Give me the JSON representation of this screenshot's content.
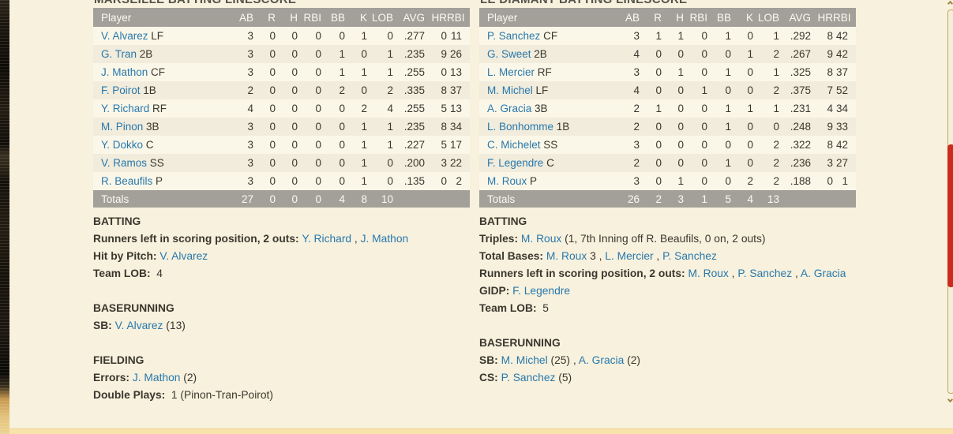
{
  "colors": {
    "page_bg": "#f7f1dd",
    "header_bg": "#a2a099",
    "header_text": "#fbfaf2",
    "row_odd": "#fbf7e8",
    "row_even": "#f1ecdb",
    "link": "#2878ad",
    "text_dark": "#3b372f",
    "title": "#56524a",
    "scroll_thumb": "#cb2b1b",
    "scroll_border": "#c2a86a",
    "bottom_bar": "#f8e3ab"
  },
  "tables": [
    {
      "title": "MARSEILLE BATTING LINESCORE",
      "columns": [
        "Player",
        "AB",
        "R",
        "H",
        "RBI",
        "BB",
        "K",
        "LOB",
        "AVG",
        "HR",
        "RBI"
      ],
      "rows": [
        {
          "name": "V. Alvarez",
          "pos": "LF",
          "stats": [
            "3",
            "0",
            "0",
            "0",
            "0",
            "1",
            "0",
            ".277",
            "0",
            "11"
          ]
        },
        {
          "name": "G. Tran",
          "pos": "2B",
          "stats": [
            "3",
            "0",
            "0",
            "0",
            "1",
            "0",
            "1",
            ".235",
            "9",
            "26"
          ]
        },
        {
          "name": "J. Mathon",
          "pos": "CF",
          "stats": [
            "3",
            "0",
            "0",
            "0",
            "1",
            "1",
            "1",
            ".255",
            "0",
            "13"
          ]
        },
        {
          "name": "F. Poirot",
          "pos": "1B",
          "stats": [
            "2",
            "0",
            "0",
            "0",
            "2",
            "0",
            "2",
            ".335",
            "8",
            "37"
          ]
        },
        {
          "name": "Y. Richard",
          "pos": "RF",
          "stats": [
            "4",
            "0",
            "0",
            "0",
            "0",
            "2",
            "4",
            ".255",
            "5",
            "13"
          ]
        },
        {
          "name": "M. Pinon",
          "pos": "3B",
          "stats": [
            "3",
            "0",
            "0",
            "0",
            "0",
            "1",
            "1",
            ".235",
            "8",
            "34"
          ]
        },
        {
          "name": "Y. Dokko",
          "pos": "C",
          "stats": [
            "3",
            "0",
            "0",
            "0",
            "0",
            "1",
            "1",
            ".227",
            "5",
            "17"
          ]
        },
        {
          "name": "V. Ramos",
          "pos": "SS",
          "stats": [
            "3",
            "0",
            "0",
            "0",
            "0",
            "1",
            "0",
            ".200",
            "3",
            "22"
          ]
        },
        {
          "name": "R. Beaufils",
          "pos": "P",
          "stats": [
            "3",
            "0",
            "0",
            "0",
            "0",
            "1",
            "0",
            ".135",
            "0",
            "2"
          ]
        }
      ],
      "totals": {
        "label": "Totals",
        "stats": [
          "27",
          "0",
          "0",
          "0",
          "4",
          "8",
          "10",
          "",
          "",
          ""
        ]
      }
    },
    {
      "title": "LE DIAMANT BATTING LINESCORE",
      "columns": [
        "Player",
        "AB",
        "R",
        "H",
        "RBI",
        "BB",
        "K",
        "LOB",
        "AVG",
        "HR",
        "RBI"
      ],
      "rows": [
        {
          "name": "P. Sanchez",
          "pos": "CF",
          "stats": [
            "3",
            "1",
            "1",
            "0",
            "1",
            "0",
            "1",
            ".292",
            "8",
            "42"
          ]
        },
        {
          "name": "G. Sweet",
          "pos": "2B",
          "stats": [
            "4",
            "0",
            "0",
            "0",
            "0",
            "1",
            "2",
            ".267",
            "9",
            "42"
          ]
        },
        {
          "name": "L. Mercier",
          "pos": "RF",
          "stats": [
            "3",
            "0",
            "1",
            "0",
            "1",
            "0",
            "1",
            ".325",
            "8",
            "37"
          ]
        },
        {
          "name": "M. Michel",
          "pos": "LF",
          "stats": [
            "4",
            "0",
            "0",
            "1",
            "0",
            "0",
            "2",
            ".375",
            "7",
            "52"
          ]
        },
        {
          "name": "A. Gracia",
          "pos": "3B",
          "stats": [
            "2",
            "1",
            "0",
            "0",
            "1",
            "1",
            "1",
            ".231",
            "4",
            "34"
          ]
        },
        {
          "name": "L. Bonhomme",
          "pos": "1B",
          "stats": [
            "2",
            "0",
            "0",
            "0",
            "1",
            "0",
            "0",
            ".248",
            "9",
            "33"
          ]
        },
        {
          "name": "C. Michelet",
          "pos": "SS",
          "stats": [
            "3",
            "0",
            "0",
            "0",
            "0",
            "0",
            "2",
            ".322",
            "8",
            "42"
          ]
        },
        {
          "name": "F. Legendre",
          "pos": "C",
          "stats": [
            "2",
            "0",
            "0",
            "0",
            "1",
            "0",
            "2",
            ".236",
            "3",
            "27"
          ]
        },
        {
          "name": "M. Roux",
          "pos": "P",
          "stats": [
            "3",
            "0",
            "1",
            "0",
            "0",
            "2",
            "2",
            ".188",
            "0",
            "1"
          ]
        }
      ],
      "totals": {
        "label": "Totals",
        "stats": [
          "26",
          "2",
          "3",
          "1",
          "5",
          "4",
          "13",
          "",
          "",
          ""
        ]
      }
    }
  ],
  "notes": [
    {
      "sections": [
        {
          "heading": "BATTING",
          "lines": [
            [
              {
                "k": "label",
                "t": "Runners left in scoring position, 2 outs: "
              },
              {
                "k": "link",
                "t": "Y. Richard"
              },
              {
                "k": "text",
                "t": " , "
              },
              {
                "k": "link",
                "t": "J. Mathon"
              }
            ],
            [
              {
                "k": "label",
                "t": "Hit by Pitch: "
              },
              {
                "k": "link",
                "t": "V. Alvarez"
              }
            ],
            [
              {
                "k": "label",
                "t": "Team LOB: "
              },
              {
                "k": "text",
                "t": " 4"
              }
            ]
          ]
        },
        {
          "heading": "BASERUNNING",
          "lines": [
            [
              {
                "k": "label",
                "t": "SB: "
              },
              {
                "k": "link",
                "t": "V. Alvarez"
              },
              {
                "k": "text",
                "t": " (13)"
              }
            ]
          ]
        },
        {
          "heading": "FIELDING",
          "lines": [
            [
              {
                "k": "label",
                "t": "Errors: "
              },
              {
                "k": "link",
                "t": "J. Mathon"
              },
              {
                "k": "text",
                "t": " (2)"
              }
            ],
            [
              {
                "k": "label",
                "t": "Double Plays: "
              },
              {
                "k": "text",
                "t": " 1 (Pinon-Tran-Poirot)"
              }
            ]
          ]
        }
      ]
    },
    {
      "sections": [
        {
          "heading": "BATTING",
          "lines": [
            [
              {
                "k": "label",
                "t": "Triples: "
              },
              {
                "k": "link",
                "t": "M. Roux"
              },
              {
                "k": "text",
                "t": " (1, 7th Inning off R. Beaufils, 0 on, 2 outs)"
              }
            ],
            [
              {
                "k": "label",
                "t": "Total Bases: "
              },
              {
                "k": "link",
                "t": "M. Roux"
              },
              {
                "k": "text",
                "t": " 3 , "
              },
              {
                "k": "link",
                "t": "L. Mercier"
              },
              {
                "k": "text",
                "t": " , "
              },
              {
                "k": "link",
                "t": "P. Sanchez"
              }
            ],
            [
              {
                "k": "label",
                "t": "Runners left in scoring position, 2 outs: "
              },
              {
                "k": "link",
                "t": "M. Roux"
              },
              {
                "k": "text",
                "t": " , "
              },
              {
                "k": "link",
                "t": "P. Sanchez"
              },
              {
                "k": "text",
                "t": " , "
              },
              {
                "k": "link",
                "t": "A. Gracia"
              }
            ],
            [
              {
                "k": "label",
                "t": "GIDP: "
              },
              {
                "k": "link",
                "t": "F. Legendre"
              }
            ],
            [
              {
                "k": "label",
                "t": "Team LOB: "
              },
              {
                "k": "text",
                "t": " 5"
              }
            ]
          ]
        },
        {
          "heading": "BASERUNNING",
          "lines": [
            [
              {
                "k": "label",
                "t": "SB: "
              },
              {
                "k": "link",
                "t": "M. Michel"
              },
              {
                "k": "text",
                "t": " (25) , "
              },
              {
                "k": "link",
                "t": "A. Gracia"
              },
              {
                "k": "text",
                "t": " (2)"
              }
            ],
            [
              {
                "k": "label",
                "t": "CS: "
              },
              {
                "k": "link",
                "t": "P. Sanchez"
              },
              {
                "k": "text",
                "t": " (5)"
              }
            ]
          ]
        }
      ]
    }
  ],
  "scrollbar": {
    "up_icon": "chevron-up",
    "down_icon": "chevron-down",
    "thumb_color": "#cb2b1b"
  }
}
